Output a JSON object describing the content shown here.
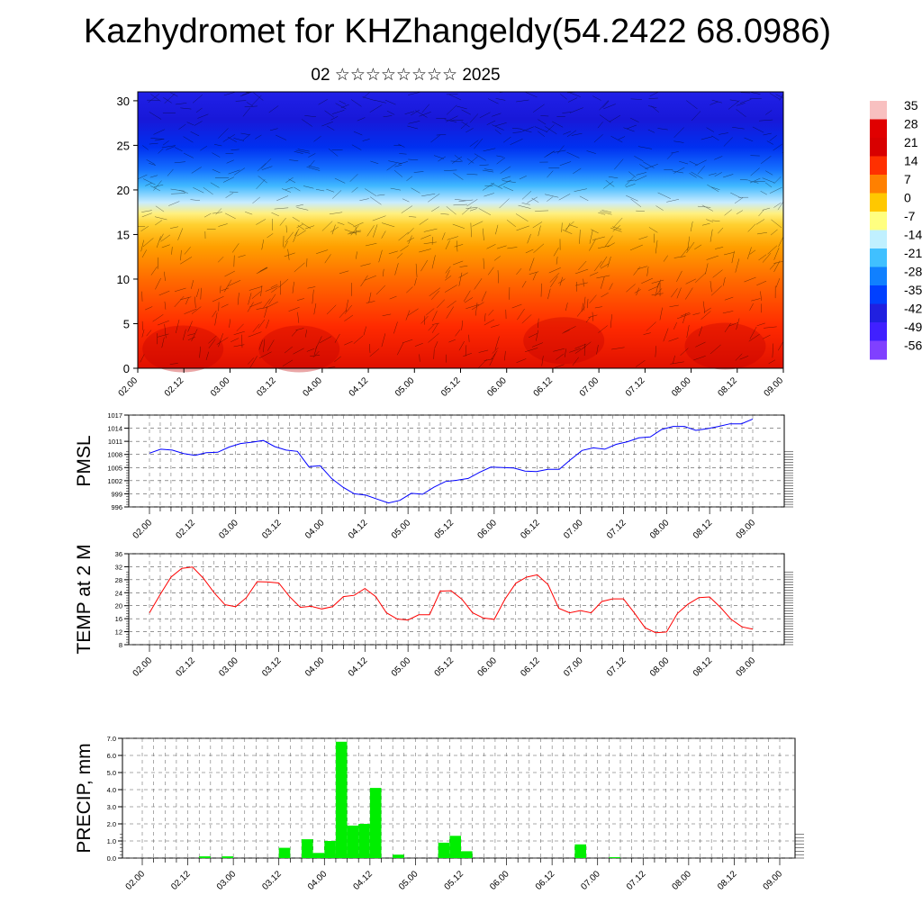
{
  "title": "Kazhydromet for KHZhangeldy(54.2422 68.0986)",
  "subtitle": "02 ☆☆☆☆☆☆☆☆ 2025",
  "colors": {
    "pmsl_line": "#0000ff",
    "temp_line": "#ff0000",
    "precip_bar": "#00ee00"
  },
  "chart_data": [
    {
      "type": "heatmap",
      "name": "cross-section",
      "x_ticks": [
        "02.00",
        "02.12",
        "03.00",
        "03.12",
        "04.00",
        "04.12",
        "05.00",
        "05.12",
        "06.00",
        "06.12",
        "07.00",
        "07.12",
        "08.00",
        "08.12",
        "09.00"
      ],
      "y_ticks": [
        "0",
        "5",
        "10",
        "15",
        "20",
        "25",
        "30"
      ],
      "ylim": [
        0,
        31
      ],
      "colorbar_labels": [
        "35",
        "28",
        "21",
        "14",
        "7",
        "0",
        "-7",
        "-14",
        "-21",
        "-28",
        "-35",
        "-42",
        "-49",
        "-56"
      ],
      "colorscale": [
        "#ff5050",
        "#e00000",
        "#ff3000",
        "#ff7a00",
        "#ffb000",
        "#ffe060",
        "#d0f0ff",
        "#40c0ff",
        "#1080ff",
        "#0040ff",
        "#2020e0",
        "#6020ff"
      ]
    },
    {
      "type": "line",
      "name": "PMSL",
      "ylabel": "PMSL",
      "x_ticks": [
        "02.00",
        "02.12",
        "03.00",
        "03.12",
        "04.00",
        "04.12",
        "05.00",
        "05.12",
        "06.00",
        "06.12",
        "07.00",
        "07.12",
        "08.00",
        "08.12",
        "09.00"
      ],
      "y_ticks": [
        "996",
        "999",
        "1002",
        "1005",
        "1008",
        "1011",
        "1014",
        "1017"
      ],
      "ylim": [
        996,
        1017
      ],
      "values": [
        1008.3,
        1009.2,
        1009.0,
        1008.2,
        1007.8,
        1008.4,
        1008.5,
        1009.7,
        1010.5,
        1010.8,
        1011.2,
        1009.8,
        1009.0,
        1008.7,
        1005.2,
        1005.4,
        1002.5,
        1000.5,
        999.0,
        998.7,
        997.8,
        996.9,
        997.5,
        999.1,
        998.9,
        1000.5,
        1001.8,
        1002.1,
        1002.5,
        1003.9,
        1005.1,
        1005.0,
        1004.9,
        1004.2,
        1004.1,
        1004.6,
        1004.6,
        1006.8,
        1008.9,
        1009.5,
        1009.2,
        1010.3,
        1010.9,
        1011.8,
        1012.0,
        1013.7,
        1014.4,
        1014.4,
        1013.5,
        1013.9,
        1014.4,
        1015.0,
        1015.0,
        1016.1
      ]
    },
    {
      "type": "line",
      "name": "TEMP at 2 M",
      "ylabel": "TEMP at 2 M",
      "x_ticks": [
        "02.00",
        "02.12",
        "03.00",
        "03.12",
        "04.00",
        "04.12",
        "05.00",
        "05.12",
        "06.00",
        "06.12",
        "07.00",
        "07.12",
        "08.00",
        "08.12",
        "09.00"
      ],
      "y_ticks": [
        "8",
        "12",
        "16",
        "20",
        "24",
        "28",
        "32",
        "36"
      ],
      "ylim": [
        8,
        36
      ],
      "values": [
        17.8,
        23.5,
        28.8,
        31.5,
        31.9,
        28.5,
        24.0,
        20.3,
        19.7,
        22.5,
        27.4,
        27.3,
        27.0,
        22.8,
        19.5,
        19.8,
        19.0,
        19.7,
        22.8,
        23.2,
        25.3,
        22.8,
        17.8,
        15.9,
        15.6,
        17.2,
        17.2,
        24.5,
        24.6,
        22.0,
        17.8,
        16.2,
        15.8,
        22.0,
        26.9,
        28.8,
        29.5,
        26.5,
        19.2,
        17.8,
        18.5,
        17.8,
        21.3,
        22.1,
        22.1,
        17.8,
        13.2,
        11.7,
        11.9,
        17.6,
        20.5,
        22.5,
        22.7,
        19.5,
        15.8,
        13.5,
        12.8
      ]
    },
    {
      "type": "bar",
      "name": "PRECIP, mm",
      "ylabel": "PRECIP, mm",
      "x_ticks": [
        "02.00",
        "02.12",
        "03.00",
        "03.12",
        "04.00",
        "04.12",
        "05.00",
        "05.12",
        "06.00",
        "06.12",
        "07.00",
        "07.12",
        "08.00",
        "08.12",
        "09.00"
      ],
      "y_ticks": [
        "0.0",
        "1.0",
        "2.0",
        "3.0",
        "4.0",
        "5.0",
        "6.0",
        "7.0"
      ],
      "ylim": [
        0,
        7
      ],
      "values": [
        0,
        0,
        0,
        0,
        0,
        0.1,
        0,
        0.1,
        0,
        0,
        0,
        0,
        0.6,
        0,
        1.1,
        0.3,
        1.0,
        6.8,
        1.9,
        2.0,
        4.1,
        0,
        0.2,
        0,
        0,
        0,
        0.9,
        1.3,
        0.4,
        0,
        0,
        0,
        0,
        0,
        0,
        0,
        0,
        0,
        0.8,
        0,
        0,
        0.05,
        0,
        0,
        0,
        0,
        0,
        0,
        0,
        0,
        0,
        0,
        0,
        0,
        0,
        0
      ]
    }
  ]
}
